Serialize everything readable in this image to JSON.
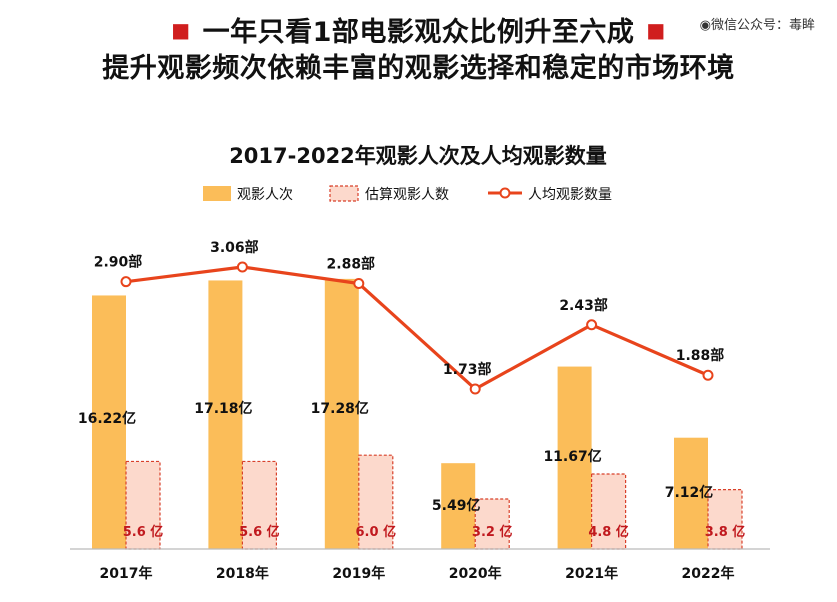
{
  "header": {
    "line1": "一年只看1部电影观众比例升至六成",
    "line2": "提升观影频次依赖丰富的观影选择和稳定的市场环境",
    "watermark": "微信公众号：毒眸"
  },
  "colors": {
    "bar": "#fbbd59",
    "estimate_fill": "#fcd9cc",
    "estimate_border": "#d8402a",
    "line": "#e8441c",
    "estimate_label": "#c0191e",
    "bullet": "#d01e1e"
  },
  "chart_data": {
    "type": "bar",
    "title": "2017-2022年观影人次及人均观影数量",
    "legend_position": "top",
    "grid": false,
    "categories": [
      "2017年",
      "2018年",
      "2019年",
      "2020年",
      "2021年",
      "2022年"
    ],
    "series": [
      {
        "name": "观影人次",
        "kind": "bar",
        "values": [
          16.22,
          17.18,
          17.28,
          5.49,
          11.67,
          7.12
        ],
        "labels": [
          "16.22亿",
          "17.18亿",
          "17.28亿",
          "5.49亿",
          "11.67亿",
          "7.12亿"
        ]
      },
      {
        "name": "估算观影人数",
        "kind": "bar-dashed",
        "values": [
          5.6,
          5.6,
          6.0,
          3.2,
          4.8,
          3.8
        ],
        "labels": [
          "5.6 亿",
          "5.6 亿",
          "6.0 亿",
          "3.2 亿",
          "4.8 亿",
          "3.8 亿"
        ]
      },
      {
        "name": "人均观影数量",
        "kind": "line",
        "values": [
          2.9,
          3.06,
          2.88,
          1.73,
          2.43,
          1.88
        ],
        "labels": [
          "2.90部",
          "3.06部",
          "2.88部",
          "1.73部",
          "2.43部",
          "1.88部"
        ]
      }
    ],
    "ylim_bars": [
      0,
      18.2
    ],
    "ylim_line": [
      0.53,
      3.63
    ]
  }
}
